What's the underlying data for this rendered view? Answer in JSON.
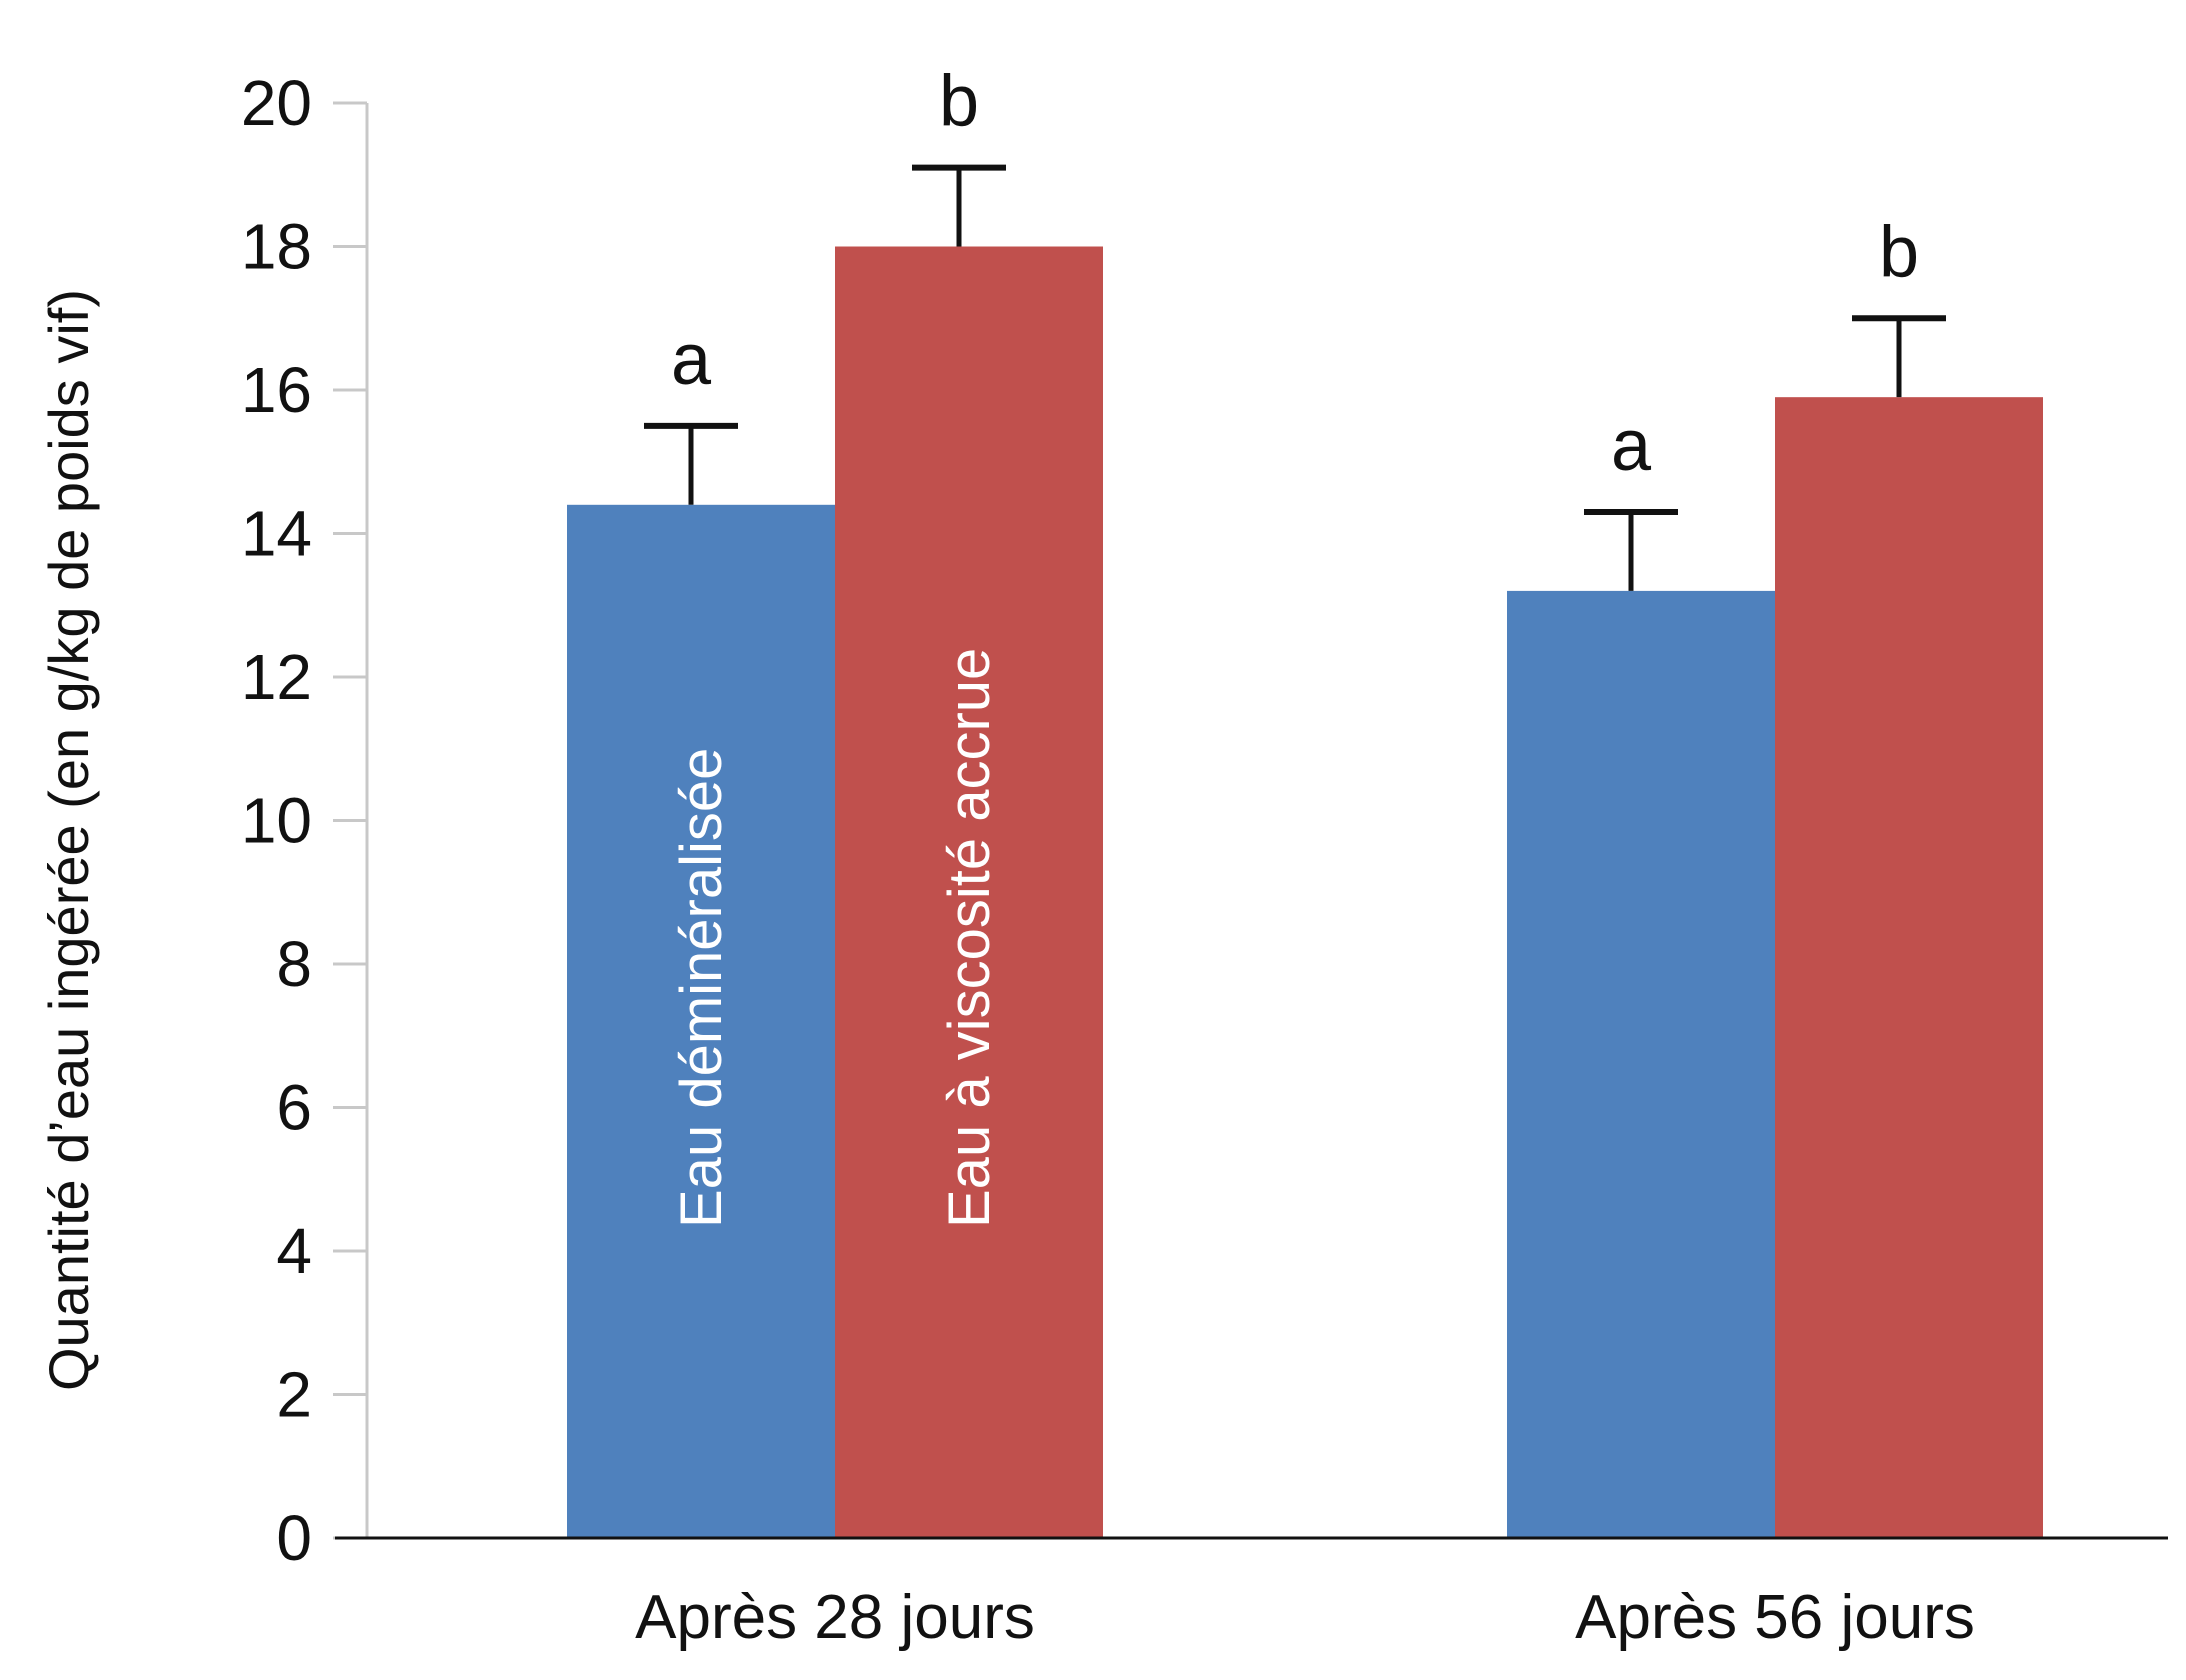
{
  "chart_data": {
    "type": "bar",
    "title": "",
    "xlabel": "",
    "ylabel": "Quantité d’eau ingérée (en g/kg de poids vif)",
    "ylim": [
      0,
      20
    ],
    "yticks": [
      "0",
      "2",
      "4",
      "6",
      "8",
      "10",
      "12",
      "14",
      "16",
      "18",
      "20"
    ],
    "categories": [
      "Après 28 jours",
      "Après 56 jours"
    ],
    "series": [
      {
        "name": "Eau déminéralisée",
        "color": "#4F81BD",
        "values": [
          14.4,
          13.2
        ],
        "errors": [
          1.1,
          1.1
        ],
        "significance": [
          "a",
          "a"
        ]
      },
      {
        "name": "Eau à viscosité accrue",
        "color": "#C0504D",
        "values": [
          18.0,
          15.9
        ],
        "errors": [
          1.1,
          1.1
        ],
        "significance": [
          "b",
          "b"
        ]
      }
    ],
    "grid": false,
    "legend": "inside-bars"
  }
}
